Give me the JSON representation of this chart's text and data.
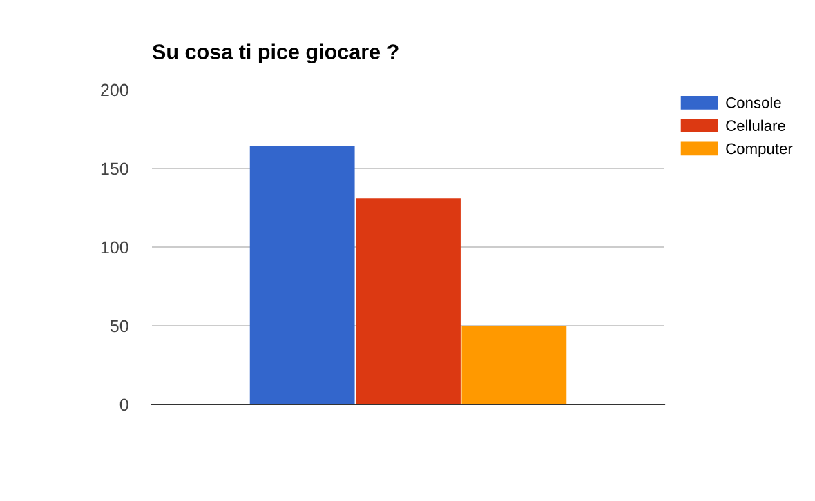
{
  "chart_data": {
    "type": "bar",
    "title": "Su cosa ti pice giocare ?",
    "categories": [
      null
    ],
    "series": [
      {
        "name": "Console",
        "color": "#3366cc",
        "values": [
          164
        ]
      },
      {
        "name": "Cellulare",
        "color": "#dc3912",
        "values": [
          131
        ]
      },
      {
        "name": "Computer",
        "color": "#ff9900",
        "values": [
          50
        ]
      }
    ],
    "ylim": [
      0,
      200
    ],
    "yticks": [
      0,
      50,
      100,
      150,
      200
    ],
    "grid": "y",
    "legend": "right"
  }
}
